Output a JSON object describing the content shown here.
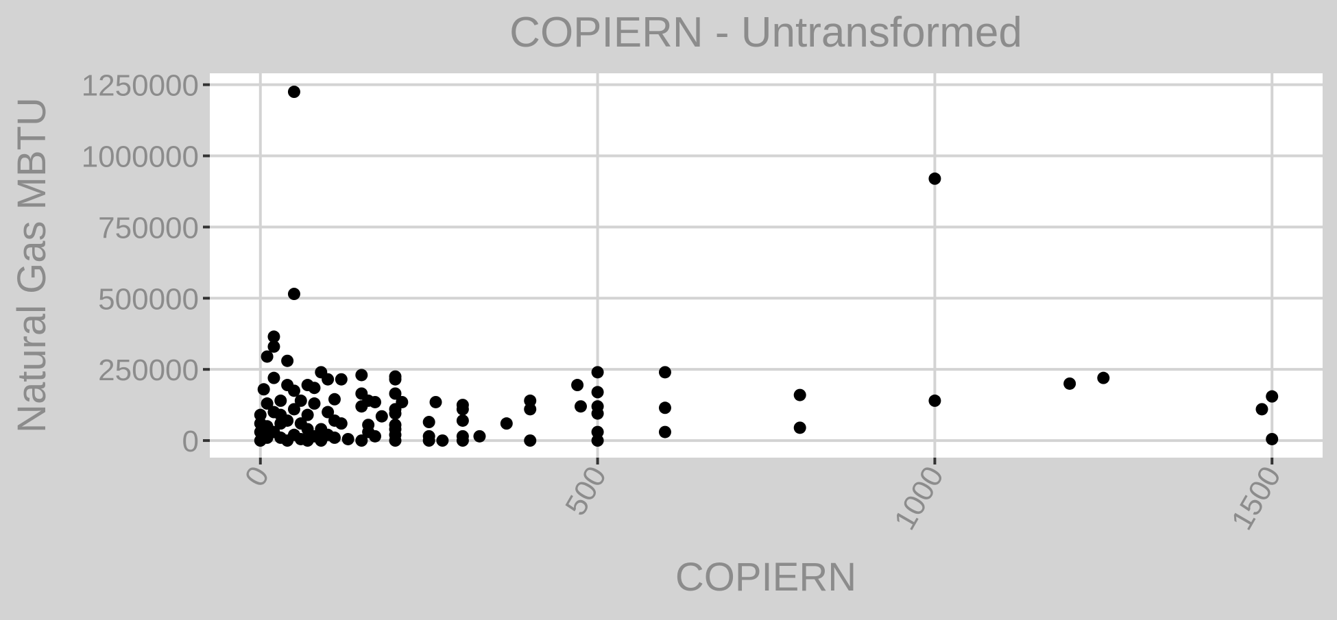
{
  "chart_data": {
    "type": "scatter",
    "title": "COPIERN - Untransformed",
    "xlabel": "COPIERN",
    "ylabel": "Natural Gas MBTU",
    "xlim": [
      -75,
      1575
    ],
    "ylim": [
      -60000,
      1290000
    ],
    "x_ticks": [
      0,
      500,
      1000,
      1500
    ],
    "y_ticks": [
      0,
      250000,
      500000,
      750000,
      1000000,
      1250000
    ],
    "x_tick_labels": [
      "0",
      "500",
      "1000",
      "1500"
    ],
    "y_tick_labels": [
      "0",
      "250000",
      "500000",
      "750000",
      "1000000",
      "1250000"
    ],
    "grid": true,
    "legend": "none",
    "colors": {
      "background": "#d3d3d3",
      "panel": "#ffffff",
      "grid": "#d3d3d3",
      "point": "#000000",
      "text": "#8c8c8c"
    },
    "points": [
      [
        50,
        1225000
      ],
      [
        50,
        515000
      ],
      [
        1000,
        920000
      ],
      [
        20,
        365000
      ],
      [
        20,
        330000
      ],
      [
        10,
        295000
      ],
      [
        40,
        280000
      ],
      [
        20,
        220000
      ],
      [
        90,
        240000
      ],
      [
        100,
        215000
      ],
      [
        120,
        215000
      ],
      [
        40,
        195000
      ],
      [
        50,
        175000
      ],
      [
        70,
        195000
      ],
      [
        80,
        185000
      ],
      [
        30,
        140000
      ],
      [
        60,
        140000
      ],
      [
        110,
        145000
      ],
      [
        150,
        230000
      ],
      [
        150,
        165000
      ],
      [
        160,
        140000
      ],
      [
        170,
        135000
      ],
      [
        180,
        85000
      ],
      [
        200,
        225000
      ],
      [
        200,
        215000
      ],
      [
        200,
        165000
      ],
      [
        200,
        110000
      ],
      [
        200,
        95000
      ],
      [
        200,
        55000
      ],
      [
        200,
        40000
      ],
      [
        200,
        20000
      ],
      [
        200,
        0
      ],
      [
        210,
        135000
      ],
      [
        150,
        120000
      ],
      [
        160,
        55000
      ],
      [
        160,
        30000
      ],
      [
        170,
        15000
      ],
      [
        150,
        0
      ],
      [
        130,
        5000
      ],
      [
        120,
        60000
      ],
      [
        10,
        130000
      ],
      [
        20,
        100000
      ],
      [
        30,
        90000
      ],
      [
        40,
        70000
      ],
      [
        50,
        110000
      ],
      [
        60,
        60000
      ],
      [
        70,
        90000
      ],
      [
        80,
        130000
      ],
      [
        90,
        40000
      ],
      [
        100,
        100000
      ],
      [
        110,
        70000
      ],
      [
        10,
        50000
      ],
      [
        20,
        30000
      ],
      [
        30,
        10000
      ],
      [
        40,
        0
      ],
      [
        50,
        20000
      ],
      [
        60,
        5000
      ],
      [
        70,
        0
      ],
      [
        80,
        15000
      ],
      [
        90,
        0
      ],
      [
        100,
        20000
      ],
      [
        110,
        10000
      ],
      [
        0,
        0
      ],
      [
        0,
        30000
      ],
      [
        0,
        60000
      ],
      [
        0,
        90000
      ],
      [
        5,
        180000
      ],
      [
        10,
        10000
      ],
      [
        30,
        60000
      ],
      [
        70,
        40000
      ],
      [
        250,
        65000
      ],
      [
        250,
        15000
      ],
      [
        250,
        0
      ],
      [
        260,
        135000
      ],
      [
        270,
        0
      ],
      [
        300,
        125000
      ],
      [
        300,
        110000
      ],
      [
        300,
        70000
      ],
      [
        300,
        15000
      ],
      [
        300,
        0
      ],
      [
        325,
        15000
      ],
      [
        365,
        60000
      ],
      [
        400,
        140000
      ],
      [
        400,
        110000
      ],
      [
        400,
        0
      ],
      [
        470,
        195000
      ],
      [
        475,
        120000
      ],
      [
        500,
        240000
      ],
      [
        500,
        170000
      ],
      [
        500,
        120000
      ],
      [
        500,
        95000
      ],
      [
        500,
        30000
      ],
      [
        500,
        0
      ],
      [
        600,
        240000
      ],
      [
        600,
        115000
      ],
      [
        600,
        30000
      ],
      [
        800,
        160000
      ],
      [
        800,
        45000
      ],
      [
        1000,
        140000
      ],
      [
        1200,
        200000
      ],
      [
        1250,
        220000
      ],
      [
        1485,
        110000
      ],
      [
        1500,
        155000
      ],
      [
        1500,
        5000
      ]
    ]
  }
}
